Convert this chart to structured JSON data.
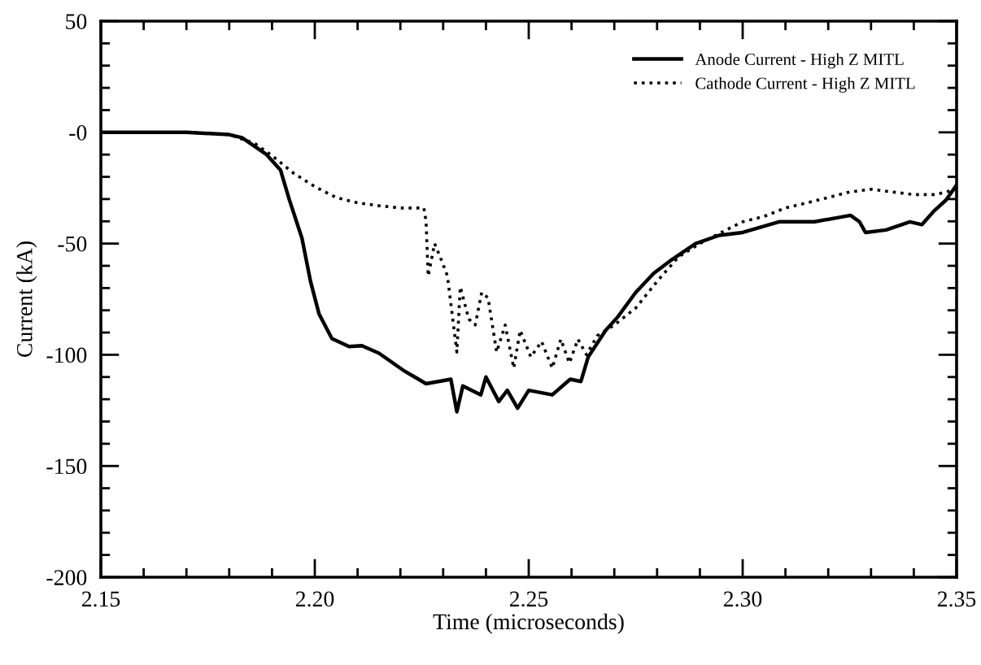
{
  "chart_data": {
    "type": "line",
    "xlabel": "Time (microseconds)",
    "ylabel": "Current (kA)",
    "xlim": [
      2.15,
      2.35
    ],
    "xticks": [
      {
        "value": 2.15,
        "label": "2.15"
      },
      {
        "value": 2.2,
        "label": "2.20"
      },
      {
        "value": 2.25,
        "label": "2.25"
      },
      {
        "value": 2.3,
        "label": "2.30"
      },
      {
        "value": 2.35,
        "label": "2.35"
      }
    ],
    "ylim": [
      -200,
      50
    ],
    "yticks": [
      -200,
      -150,
      -100,
      -50,
      {
        "value": 0,
        "label": "-0"
      },
      50
    ],
    "grid": false,
    "legend": "top right",
    "marker": "none",
    "series": [
      {
        "name": "Anode Current - High Z MITL",
        "color": "#000000",
        "line_style": "solid",
        "x": [
          2.15,
          2.16,
          2.17,
          2.18,
          2.183,
          2.1886,
          2.192,
          2.194,
          2.197,
          2.199,
          2.201,
          2.204,
          2.208,
          2.211,
          2.215,
          2.2207,
          2.226,
          2.2318,
          2.2332,
          2.2346,
          2.2388,
          2.24,
          2.243,
          2.245,
          2.2474,
          2.25,
          2.2555,
          2.2597,
          2.2622,
          2.2639,
          2.268,
          2.2708,
          2.275,
          2.2792,
          2.2834,
          2.289,
          2.2945,
          2.3,
          2.3085,
          2.3168,
          2.3252,
          2.3273,
          2.3287,
          2.3335,
          2.3391,
          2.3419,
          2.3447,
          2.3475,
          2.35
        ],
        "values": [
          0,
          0,
          0,
          -1,
          -2.4,
          -9.8,
          -17,
          -30,
          -47.6,
          -67,
          -81.7,
          -92.7,
          -96.3,
          -95.9,
          -99.3,
          -107,
          -113,
          -111,
          -125.6,
          -114,
          -118,
          -110,
          -121,
          -116,
          -124,
          -116,
          -118,
          -111,
          -112,
          -101,
          -89,
          -83,
          -72,
          -63.4,
          -57.3,
          -50,
          -46.3,
          -45,
          -40.2,
          -40.2,
          -37.3,
          -40.2,
          -45,
          -43.9,
          -40.2,
          -41.5,
          -35.4,
          -30.5,
          -23.7
        ]
      },
      {
        "name": "Cathode Current - High Z MITL",
        "color": "#000000",
        "line_style": "dotted",
        "x": [
          2.15,
          2.16,
          2.17,
          2.18,
          2.186,
          2.19,
          2.195,
          2.2,
          2.205,
          2.21,
          2.215,
          2.22,
          2.2255,
          2.226,
          2.2265,
          2.228,
          2.2295,
          2.231,
          2.2332,
          2.234,
          2.236,
          2.2375,
          2.239,
          2.2405,
          2.2425,
          2.2445,
          2.2465,
          2.248,
          2.2505,
          2.253,
          2.2555,
          2.2575,
          2.2595,
          2.2615,
          2.2635,
          2.266,
          2.27,
          2.275,
          2.28,
          2.285,
          2.29,
          2.295,
          2.3,
          2.305,
          2.31,
          2.315,
          2.32,
          2.325,
          2.33,
          2.335,
          2.34,
          2.345,
          2.35
        ],
        "values": [
          0,
          0,
          0,
          -1,
          -5,
          -10.5,
          -18.3,
          -24.4,
          -29.3,
          -31.7,
          -33,
          -34,
          -34,
          -40,
          -64.6,
          -50,
          -57,
          -64.6,
          -98.8,
          -69.5,
          -84,
          -86.6,
          -72,
          -74.4,
          -98.8,
          -86.6,
          -106,
          -89,
          -101,
          -94,
          -106,
          -93,
          -103.7,
          -93,
          -100,
          -91.5,
          -86.6,
          -79,
          -67,
          -56,
          -50,
          -45,
          -40.2,
          -37.8,
          -34,
          -31.7,
          -29.3,
          -26.8,
          -25.6,
          -26.8,
          -28,
          -28,
          -25.6
        ]
      }
    ]
  }
}
